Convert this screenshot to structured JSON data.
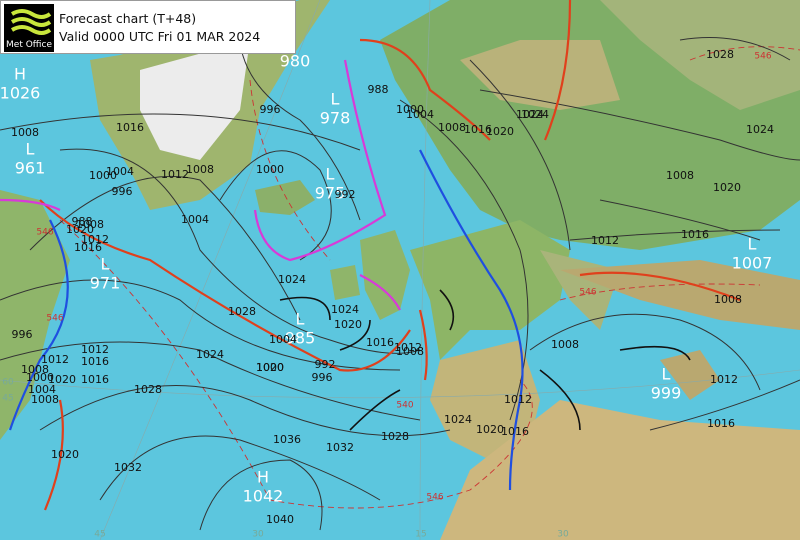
{
  "header": {
    "logo": "Met Office",
    "title": "Forecast chart (T+48)",
    "valid": "Valid 0000 UTC Fri 01 MAR 2024"
  },
  "centers": [
    {
      "type": "H",
      "value": "1026"
    },
    {
      "type": "L",
      "value": "961"
    },
    {
      "type": "L",
      "value": "978"
    },
    {
      "type": "L",
      "value": "975"
    },
    {
      "type": "L",
      "value": "971"
    },
    {
      "type": "L",
      "value": "985"
    },
    {
      "type": "L",
      "value": "1007"
    },
    {
      "type": "L",
      "value": "999"
    },
    {
      "type": "H",
      "value": "1042"
    }
  ],
  "isobar_labels": [
    "980",
    "1016",
    "1008",
    "1004",
    "1000",
    "996",
    "1012",
    "1008",
    "1004",
    "1000",
    "992",
    "988",
    "988",
    "996",
    "1000",
    "1004",
    "1008",
    "1016",
    "1020",
    "1024",
    "1008",
    "1012",
    "1016",
    "1020",
    "1024",
    "1028",
    "1024",
    "1020",
    "1016",
    "1012",
    "1008",
    "1004",
    "1000",
    "996",
    "992",
    "1008",
    "1012",
    "1016",
    "1020",
    "1024",
    "1028",
    "1032",
    "1036",
    "1028",
    "1032",
    "1040",
    "1020",
    "1024",
    "1020",
    "1016",
    "1012",
    "1012",
    "1008",
    "1016",
    "1008",
    "996",
    "1000",
    "1004",
    "1008",
    "1012",
    "1016",
    "1020",
    "1024",
    "1028",
    "1024",
    "1020",
    "1016",
    "1012",
    "1008"
  ],
  "thickness_labels": [
    "546",
    "546",
    "546",
    "546",
    "540",
    "546"
  ],
  "grid_labels": [
    "60",
    "45",
    "45",
    "30",
    "15",
    "30"
  ]
}
